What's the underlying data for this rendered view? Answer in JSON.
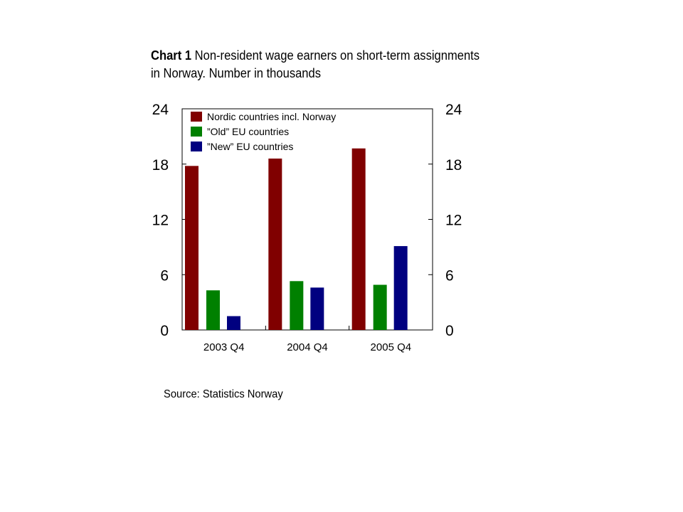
{
  "title": {
    "lead": "Chart 1",
    "text": "Non-resident wage earners on short-term assignments in Norway. Number in thousands"
  },
  "source": "Source: Statistics Norway",
  "chart_data": {
    "type": "bar",
    "categories": [
      "2003 Q4",
      "2004 Q4",
      "2005 Q4"
    ],
    "series": [
      {
        "name": "Nordic countries incl. Norway",
        "color": "#800000",
        "values": [
          17.8,
          18.6,
          19.7
        ]
      },
      {
        "name": "”Old” EU countries",
        "color": "#008000",
        "values": [
          4.3,
          5.3,
          4.9
        ]
      },
      {
        "name": "”New” EU countries",
        "color": "#000080",
        "values": [
          1.5,
          4.6,
          9.1
        ]
      }
    ],
    "ylim": [
      0,
      24
    ],
    "yticks": [
      0,
      6,
      12,
      18,
      24
    ],
    "dual_y_axis": true,
    "legend_position": "top-left",
    "grid": false
  }
}
